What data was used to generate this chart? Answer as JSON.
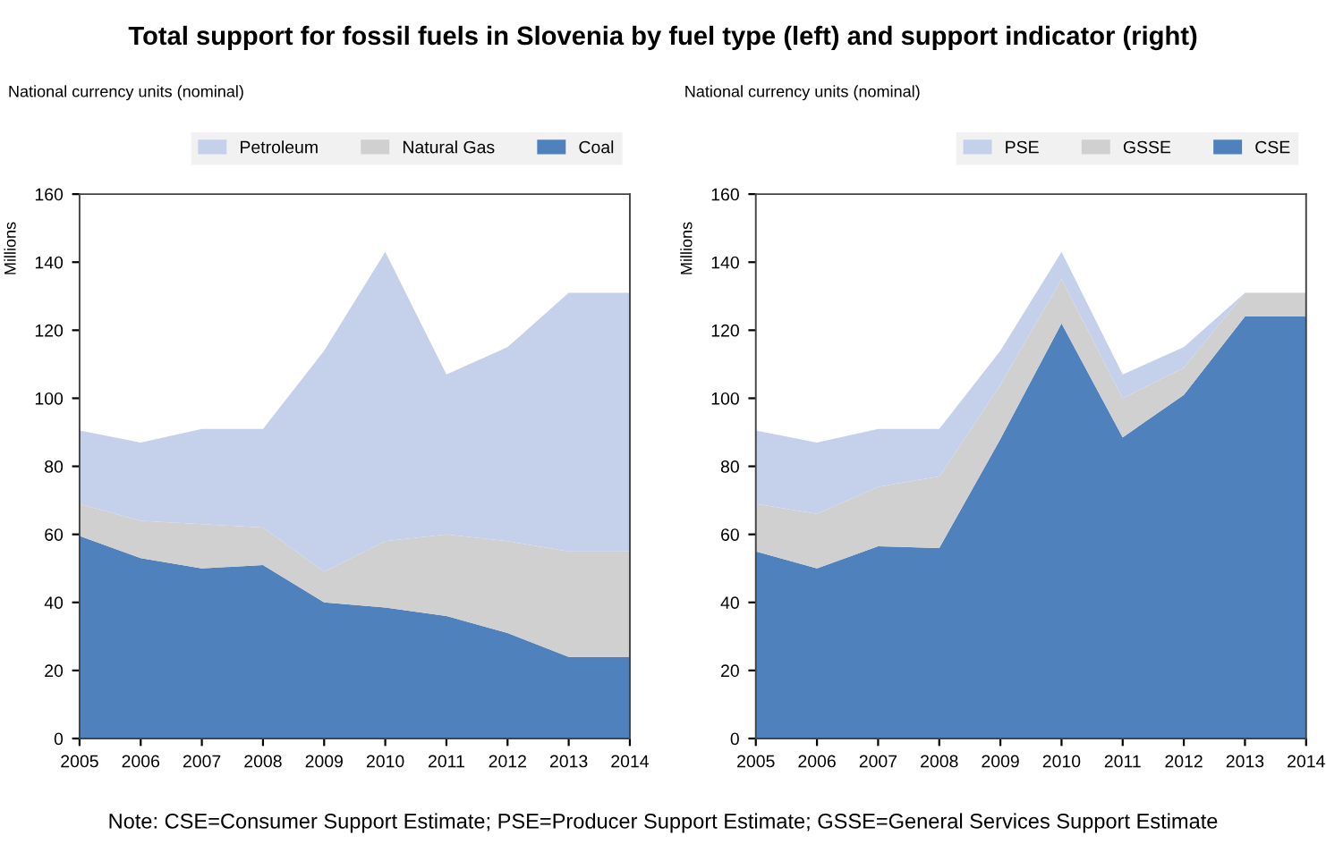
{
  "chart_data": [
    {
      "type": "area",
      "title": "Total support for fossil fuels in Slovenia by fuel type (left) and support indicator (right)",
      "ylabel": "Millions",
      "annotations": [
        "National currency units (nominal)"
      ],
      "stacked": true,
      "legend": "top",
      "grid": false,
      "categories": [
        "2005",
        "2006",
        "2007",
        "2008",
        "2009",
        "2010",
        "2011",
        "2012",
        "2013",
        "2014"
      ],
      "ylim": [
        0,
        160
      ],
      "yticks": [
        0,
        20,
        40,
        60,
        80,
        100,
        120,
        140,
        160
      ],
      "series": [
        {
          "name": "Coal",
          "color": "#4f81bd",
          "values": [
            59.5,
            53,
            50,
            51,
            40,
            38.5,
            36,
            31,
            24,
            24
          ]
        },
        {
          "name": "Natural Gas",
          "color": "#d0d0d0",
          "values": [
            9.5,
            11,
            13,
            11,
            9,
            19.5,
            24,
            27,
            31,
            31
          ]
        },
        {
          "name": "Petroleum",
          "color": "#c5d1ea",
          "values": [
            21.5,
            23,
            28,
            29,
            65,
            85,
            47,
            57,
            76,
            76
          ]
        }
      ]
    },
    {
      "type": "area",
      "ylabel": "Millions",
      "annotations": [
        "National currency units (nominal)",
        "Note: CSE=Consumer Support Estimate; PSE=Producer Support Estimate; GSSE=General Services Support Estimate"
      ],
      "stacked": true,
      "legend": "top",
      "grid": false,
      "categories": [
        "2005",
        "2006",
        "2007",
        "2008",
        "2009",
        "2010",
        "2011",
        "2012",
        "2013",
        "2014"
      ],
      "ylim": [
        0,
        160
      ],
      "yticks": [
        0,
        20,
        40,
        60,
        80,
        100,
        120,
        140,
        160
      ],
      "series": [
        {
          "name": "CSE",
          "color": "#4f81bd",
          "values": [
            55,
            50,
            56.5,
            56,
            88,
            122,
            88.5,
            101,
            124,
            124
          ]
        },
        {
          "name": "GSSE",
          "color": "#d0d0d0",
          "values": [
            14,
            16,
            17.5,
            21,
            16,
            13,
            11.5,
            8,
            7,
            7
          ]
        },
        {
          "name": "PSE",
          "color": "#c5d1ea",
          "values": [
            21.5,
            21,
            17,
            14,
            10,
            8,
            7,
            6,
            0,
            0
          ]
        }
      ]
    }
  ]
}
